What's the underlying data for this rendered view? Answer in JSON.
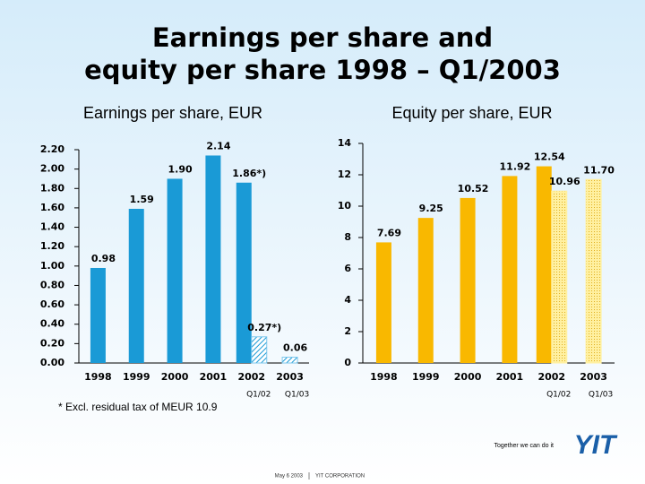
{
  "header": {
    "title": [
      "Earnings per share and",
      "equity per share 1998 – Q1/2003"
    ]
  },
  "chart_data": [
    {
      "type": "bar",
      "title": "Earnings per share, EUR",
      "categories": [
        "1998",
        "1999",
        "2000",
        "2001",
        "2002",
        "2003"
      ],
      "sublabels": [
        null,
        null,
        null,
        null,
        "Q1/02",
        "Q1/03"
      ],
      "series": [
        {
          "color": "#1a9ad6",
          "pattern": "solid",
          "values": [
            0.98,
            1.59,
            1.9,
            2.14,
            1.86,
            null
          ],
          "value_labels": [
            "0.98",
            "1.59",
            "1.90",
            "2.14",
            "1.86*)",
            null
          ]
        },
        {
          "color": "#7fc8ec",
          "pattern": "hatch",
          "values": [
            null,
            null,
            null,
            null,
            0.27,
            0.06
          ],
          "value_labels": [
            null,
            null,
            null,
            null,
            "0.27*)",
            "0.06"
          ]
        }
      ],
      "ylim": [
        0,
        2.2
      ],
      "yticks": [
        {
          "value": 0,
          "label": "0.00"
        },
        {
          "value": 0.2,
          "label": "0.20"
        },
        {
          "value": 0.4,
          "label": "0.40"
        },
        {
          "value": 0.6,
          "label": "0.60"
        },
        {
          "value": 0.8,
          "label": "0.80"
        },
        {
          "value": 1,
          "label": "1.00"
        },
        {
          "value": 1.2,
          "label": "1.20"
        },
        {
          "value": 1.4,
          "label": "1.40"
        },
        {
          "value": 1.6,
          "label": "1.60"
        },
        {
          "value": 1.8,
          "label": "1.80"
        },
        {
          "value": 2,
          "label": "2.00"
        },
        {
          "value": 2.2,
          "label": "2.20"
        }
      ],
      "annotation": "* Excl. residual tax of MEUR 10.9"
    },
    {
      "type": "bar",
      "title": "Equity per share, EUR",
      "categories": [
        "1998",
        "1999",
        "2000",
        "2001",
        "2002",
        "2003"
      ],
      "sublabels": [
        null,
        null,
        null,
        null,
        "Q1/02",
        "Q1/03"
      ],
      "series": [
        {
          "color": "#f9b800",
          "pattern": "solid",
          "values": [
            7.69,
            9.25,
            10.52,
            11.92,
            12.54,
            null
          ],
          "value_labels": [
            "7.69",
            "9.25",
            "10.52",
            "11.92",
            "12.54",
            null
          ]
        },
        {
          "color": "#fff0a0",
          "pattern": "dots",
          "values": [
            null,
            null,
            null,
            null,
            10.96,
            11.7
          ],
          "value_labels": [
            null,
            null,
            null,
            null,
            "10.96",
            "11.70"
          ]
        }
      ],
      "ylim": [
        0,
        14
      ],
      "yticks": [
        0,
        2,
        4,
        6,
        8,
        10,
        12,
        14
      ]
    }
  ],
  "footer": {
    "slogan": "Together we can do it",
    "logo": "YIT",
    "date": "May 6 2003",
    "company": "YIT CORPORATION"
  }
}
